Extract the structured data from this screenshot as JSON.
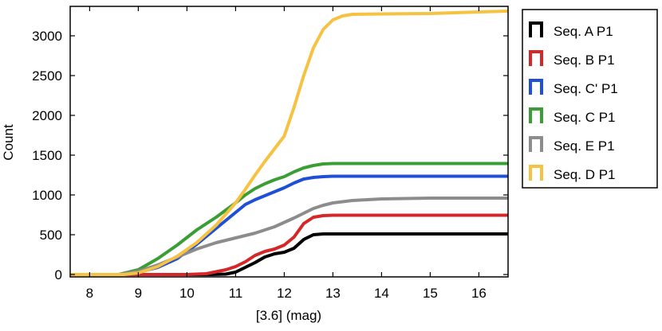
{
  "chart_data": {
    "type": "line",
    "title": "",
    "xlabel": "[3.6] (mag)",
    "ylabel": "Count",
    "xlim": [
      7.6,
      16.6
    ],
    "ylim": [
      -30,
      3370
    ],
    "xticks": [
      8,
      9,
      10,
      11,
      12,
      13,
      14,
      15,
      16
    ],
    "yticks": [
      0,
      500,
      1000,
      1500,
      2000,
      2500,
      3000
    ],
    "grid": false,
    "legend_position": "outside-right-top",
    "series": [
      {
        "name": "Seq. A P1",
        "color": "#000000",
        "x": [
          7.6,
          10.5,
          10.8,
          11.0,
          11.2,
          11.4,
          11.6,
          11.8,
          12.0,
          12.2,
          12.4,
          12.6,
          12.8,
          13.0,
          14.0,
          16.6
        ],
        "y": [
          0,
          0,
          5,
          30,
          90,
          150,
          220,
          260,
          280,
          330,
          440,
          500,
          510,
          510,
          510,
          510
        ]
      },
      {
        "name": "Seq. B P1",
        "color": "#d62728",
        "x": [
          7.6,
          10.0,
          10.4,
          10.8,
          11.0,
          11.2,
          11.4,
          11.6,
          11.8,
          12.0,
          12.2,
          12.4,
          12.6,
          12.8,
          13.0,
          14.0,
          16.6
        ],
        "y": [
          0,
          0,
          10,
          60,
          100,
          160,
          240,
          290,
          320,
          370,
          470,
          640,
          720,
          740,
          745,
          745,
          745
        ]
      },
      {
        "name": "Seq. C' P1",
        "color": "#1f4fd6",
        "x": [
          7.6,
          8.7,
          9.0,
          9.4,
          9.8,
          10.2,
          10.6,
          11.0,
          11.2,
          11.4,
          11.6,
          11.8,
          12.0,
          12.2,
          12.4,
          12.6,
          12.8,
          13.0,
          14.0,
          16.6
        ],
        "y": [
          0,
          0,
          30,
          90,
          200,
          380,
          580,
          780,
          880,
          940,
          990,
          1040,
          1090,
          1150,
          1200,
          1220,
          1230,
          1235,
          1235,
          1235
        ]
      },
      {
        "name": "Seq. C P1",
        "color": "#3a9e35",
        "x": [
          7.6,
          8.6,
          9.0,
          9.4,
          9.8,
          10.2,
          10.6,
          11.0,
          11.2,
          11.4,
          11.6,
          11.8,
          12.0,
          12.2,
          12.4,
          12.6,
          12.8,
          13.0,
          14.0,
          16.6
        ],
        "y": [
          0,
          0,
          60,
          200,
          370,
          560,
          720,
          900,
          1000,
          1080,
          1140,
          1190,
          1230,
          1290,
          1340,
          1370,
          1390,
          1395,
          1395,
          1395
        ]
      },
      {
        "name": "Seq. E P1",
        "color": "#8c8c8c",
        "x": [
          7.6,
          8.6,
          9.0,
          9.4,
          9.8,
          10.2,
          10.6,
          11.0,
          11.4,
          11.8,
          12.2,
          12.4,
          12.6,
          12.8,
          13.0,
          13.4,
          14.0,
          15.0,
          16.6
        ],
        "y": [
          0,
          0,
          40,
          120,
          220,
          320,
          400,
          460,
          520,
          600,
          710,
          770,
          830,
          870,
          900,
          930,
          950,
          960,
          960
        ]
      },
      {
        "name": "Seq. D P1",
        "color": "#f5c242",
        "x": [
          7.6,
          8.7,
          9.0,
          9.4,
          9.8,
          10.2,
          10.6,
          11.0,
          11.2,
          11.4,
          11.6,
          11.8,
          12.0,
          12.2,
          12.4,
          12.6,
          12.8,
          13.0,
          13.2,
          13.4,
          14.0,
          15.0,
          16.0,
          16.6
        ],
        "y": [
          0,
          0,
          20,
          100,
          230,
          400,
          620,
          900,
          1070,
          1250,
          1420,
          1580,
          1740,
          2100,
          2500,
          2850,
          3080,
          3200,
          3250,
          3270,
          3275,
          3280,
          3300,
          3310
        ]
      }
    ]
  }
}
